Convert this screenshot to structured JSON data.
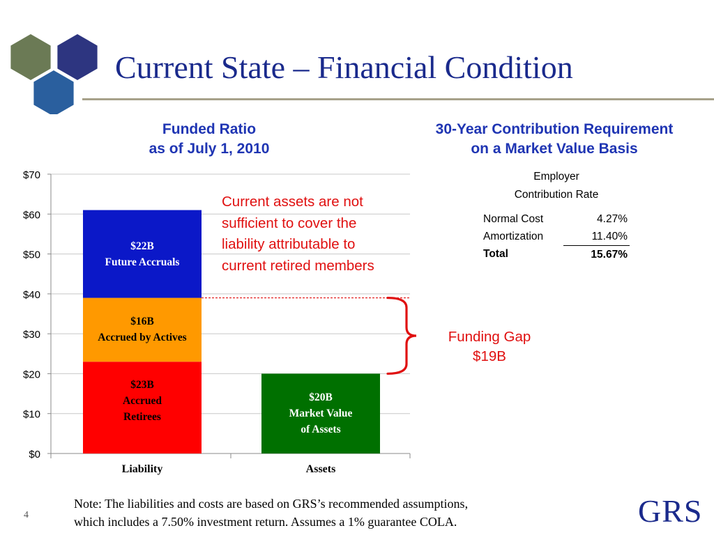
{
  "slide": {
    "title": "Current State – Financial Condition",
    "page_number": "4",
    "logo_text": "GRS",
    "note_lines": [
      "Note:  The liabilities and costs are based on GRS’s recommended assumptions,",
      "which includes a 7.50% investment return.  Assumes a 1% guarantee COLA."
    ],
    "colors": {
      "title": "#1a2a8c",
      "subtitle": "#1f35b3",
      "annotation": "#e01010",
      "rule": "#a7a18a",
      "hex_olive": "#6b7a55",
      "hex_navy": "#2d3580",
      "hex_blue": "#2a5f9e"
    }
  },
  "chart_data": {
    "type": "bar",
    "stacked": true,
    "title_lines": [
      "Funded Ratio",
      "as of July 1, 2010"
    ],
    "categories": [
      "Liability",
      "Assets"
    ],
    "y_ticks": [
      "$0",
      "$10",
      "$20",
      "$30",
      "$40",
      "$50",
      "$60",
      "$70"
    ],
    "ylim": [
      0,
      70
    ],
    "grid": true,
    "segments": [
      {
        "category": "Liability",
        "base": 0,
        "value": 23,
        "color": "#ff0000",
        "text_color": "#000000",
        "label_lines": [
          "$23B",
          "Accrued",
          "Retirees"
        ]
      },
      {
        "category": "Liability",
        "base": 23,
        "value": 16,
        "color": "#ff9900",
        "text_color": "#000000",
        "label_lines": [
          "$16B",
          "Accrued by Actives"
        ]
      },
      {
        "category": "Liability",
        "base": 39,
        "value": 22,
        "color": "#0b18c8",
        "text_color": "#ffffff",
        "label_lines": [
          "$22B",
          "Future Accruals"
        ]
      },
      {
        "category": "Assets",
        "base": 0,
        "value": 20,
        "color": "#007000",
        "text_color": "#ffffff",
        "label_lines": [
          "$20B",
          "Market Value",
          "of Assets"
        ]
      }
    ],
    "annotations": {
      "reference_value": 39,
      "reference_line_color": "#e01010",
      "text_lines": [
        "Current assets are not",
        "sufficient to cover the",
        "liability attributable to",
        "current retired members"
      ],
      "funding_gap_lines": [
        "Funding Gap",
        "$19B"
      ],
      "gap_range": [
        20,
        39
      ]
    }
  },
  "contribution": {
    "title_lines": [
      "30-Year Contribution Requirement",
      "on a Market Value Basis"
    ],
    "header_lines": [
      "Employer",
      "Contribution Rate"
    ],
    "rows": [
      {
        "label": "Normal Cost",
        "value": "4.27%"
      },
      {
        "label": "Amortization",
        "value": "11.40%"
      },
      {
        "label": "Total",
        "value": "15.67%"
      }
    ]
  }
}
